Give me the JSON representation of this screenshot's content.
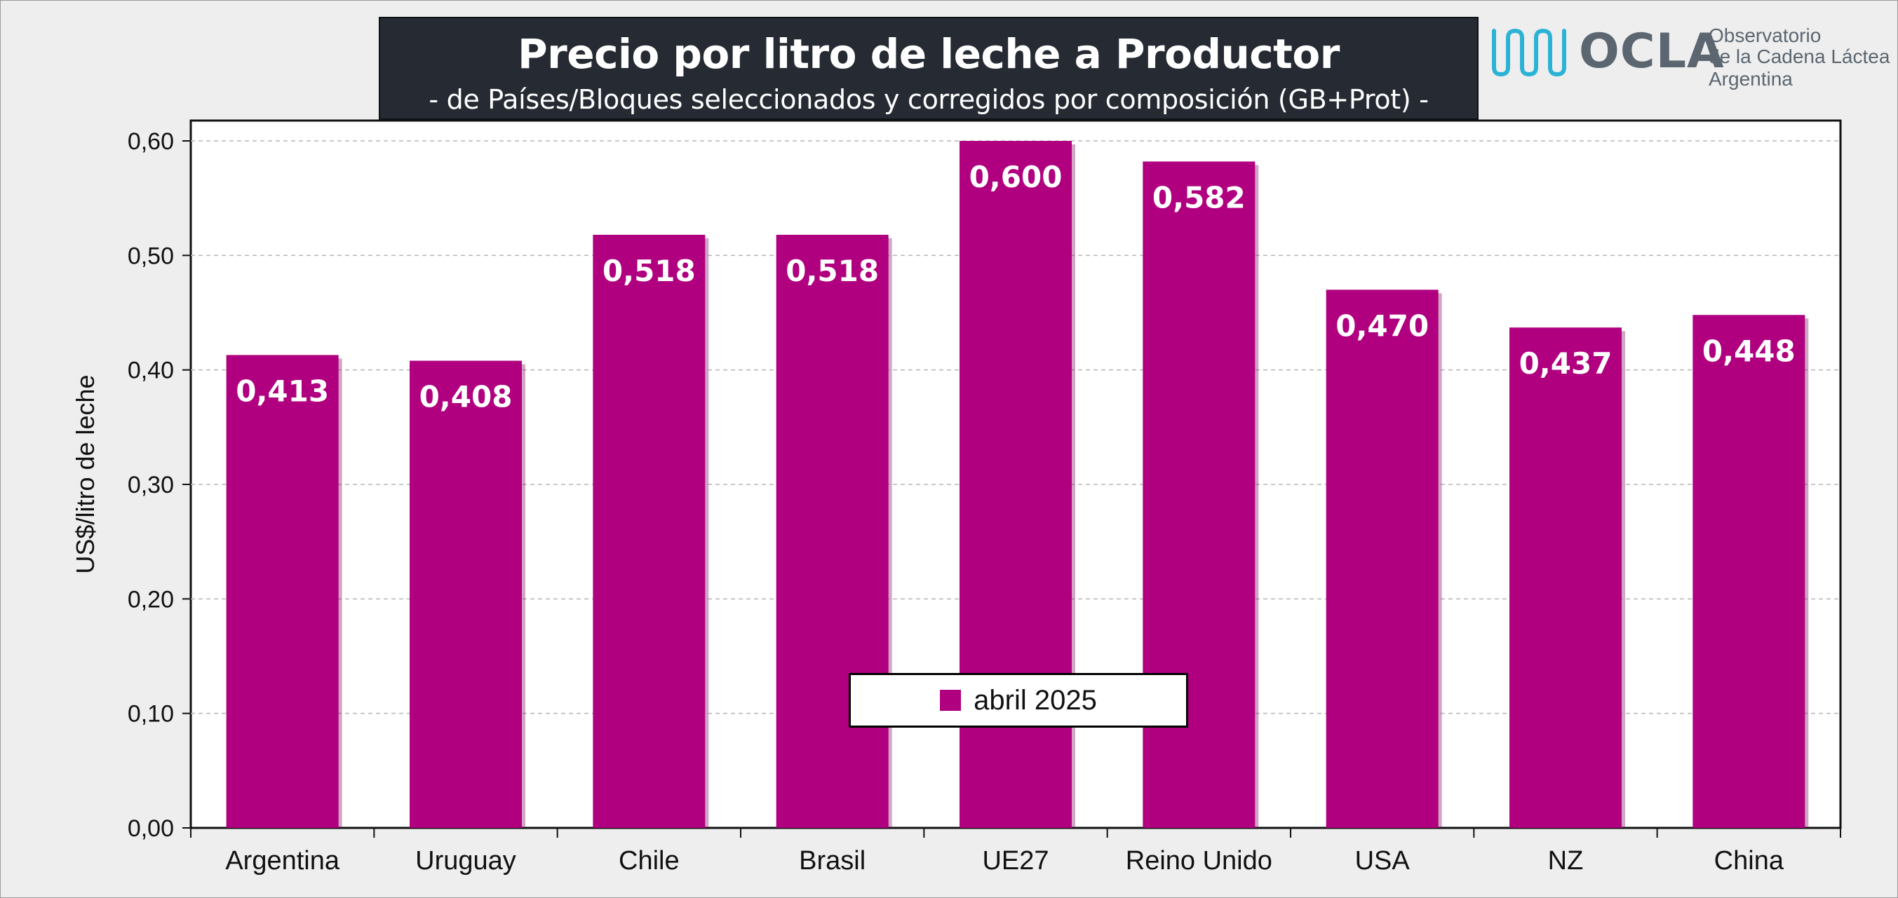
{
  "header": {
    "title": "Precio por litro de leche a Productor",
    "subtitle": "-  de Países/Bloques seleccionados y corregidos por composición (GB+Prot) -"
  },
  "logo": {
    "name": "OCLA",
    "line1": "Observatorio",
    "line2": "de la Cadena Láctea",
    "line3": "Argentina",
    "color": "#5b6670",
    "wave_color": "#2bb3d6",
    "icon": "milk-wave-icon"
  },
  "chart_data": {
    "type": "bar",
    "title": "Precio por litro de leche a Productor",
    "subtitle": "-  de Países/Bloques seleccionados y corregidos por composición (GB+Prot) -",
    "ylabel": "US$/litro de leche",
    "xlabel": "",
    "categories": [
      "Argentina",
      "Uruguay",
      "Chile",
      "Brasil",
      "UE27",
      "Reino Unido",
      "USA",
      "NZ",
      "China"
    ],
    "series": [
      {
        "name": "abril 2025",
        "color": "#b0007f",
        "values": [
          0.413,
          0.408,
          0.518,
          0.518,
          0.6,
          0.582,
          0.47,
          0.437,
          0.448
        ],
        "labels": [
          "0,413",
          "0,408",
          "0,518",
          "0,518",
          "0,600",
          "0,582",
          "0,470",
          "0,437",
          "0,448"
        ]
      }
    ],
    "ylim": [
      0,
      0.6
    ],
    "yticks": [
      0.0,
      0.1,
      0.2,
      0.3,
      0.4,
      0.5,
      0.6
    ],
    "ytick_labels": [
      "0,00",
      "0,10",
      "0,20",
      "0,30",
      "0,40",
      "0,50",
      "0,60"
    ],
    "grid": true,
    "legend_position": "bottom-center"
  },
  "legend": {
    "label": "abril 2025"
  }
}
